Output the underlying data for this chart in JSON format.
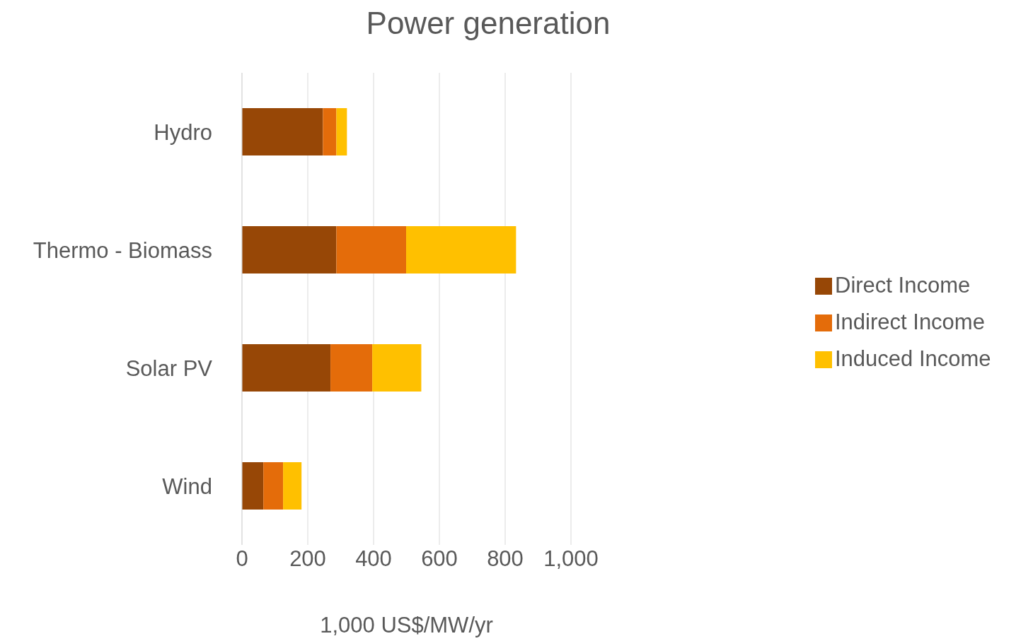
{
  "chart_data": {
    "type": "bar",
    "title": "Power generation",
    "xlabel": "1,000 US$/MW/yr",
    "orientation": "horizontal",
    "stacked": true,
    "categories": [
      "Hydro",
      "Thermo - Biomass",
      "Solar PV",
      "Wind"
    ],
    "series": [
      {
        "name": "Direct Income",
        "color": "#974706",
        "values": [
          246,
          287,
          269,
          65
        ]
      },
      {
        "name": "Indirect Income",
        "color": "#e46c0a",
        "values": [
          41,
          212,
          127,
          60
        ]
      },
      {
        "name": "Induced Income",
        "color": "#ffc000",
        "values": [
          32,
          334,
          149,
          56
        ]
      }
    ],
    "xlim": [
      0,
      1000
    ],
    "xticks": [
      0,
      200,
      400,
      600,
      800,
      {
        "value": 1000,
        "label": "1,000"
      }
    ],
    "grid": "x",
    "legend": "right"
  }
}
